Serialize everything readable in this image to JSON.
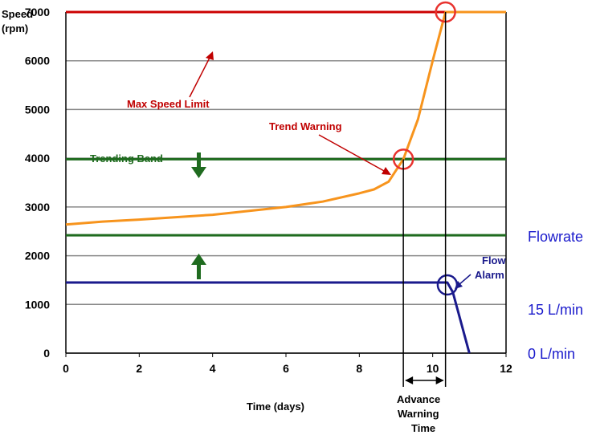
{
  "chart_data": {
    "type": "line",
    "ylabel_line1": "Speed",
    "ylabel_line2": "(rpm)",
    "xlabel": "Time (days)",
    "xlim": [
      0,
      12
    ],
    "ylim": [
      0,
      7000
    ],
    "x_ticks": [
      0,
      2,
      4,
      6,
      8,
      10,
      12
    ],
    "y_ticks": [
      0,
      1000,
      2000,
      3000,
      4000,
      5000,
      6000,
      7000
    ],
    "grid": true,
    "series": [
      {
        "color": "#f7941d",
        "x": [
          0,
          1,
          2,
          3,
          4,
          5,
          6,
          7,
          8,
          8.4,
          8.8,
          9.2,
          9.6,
          10.0,
          10.35,
          10.7,
          12
        ],
        "y": [
          2640,
          2700,
          2740,
          2790,
          2840,
          2920,
          3000,
          3110,
          3280,
          3360,
          3520,
          3980,
          4800,
          6000,
          7000,
          7000,
          7000
        ]
      },
      {
        "color": "#1a1a8c",
        "x": [
          0,
          10.4,
          10.55,
          11.0
        ],
        "y": [
          1450,
          1450,
          1250,
          0
        ]
      }
    ],
    "reference_lines": [
      {
        "y": 7000,
        "color": "#cc0000"
      },
      {
        "y": 3980,
        "color": "#1f6b1f"
      },
      {
        "y": 2420,
        "color": "#1f6b1f"
      }
    ],
    "annotations": {
      "max_speed_limit": "Max Speed Limit",
      "trend_warning": "Trend Warning",
      "trending_band": "Trending Band",
      "flow_alarm_line1": "Flow",
      "flow_alarm_line2": "Alarm",
      "advance_line1": "Advance",
      "advance_line2": "Warning",
      "advance_line3": "Time",
      "flowrate": "Flowrate",
      "flow_15": "15 L/min",
      "flow_0": "0 L/min"
    },
    "markers": [
      {
        "x": 9.2,
        "y": 3980,
        "color": "#e8322e"
      },
      {
        "x": 10.35,
        "y": 7000,
        "color": "#e8322e"
      },
      {
        "x": 10.4,
        "y": 1400,
        "color": "#1a1a8c"
      }
    ],
    "advance_warning_interval": [
      9.2,
      10.35
    ]
  }
}
